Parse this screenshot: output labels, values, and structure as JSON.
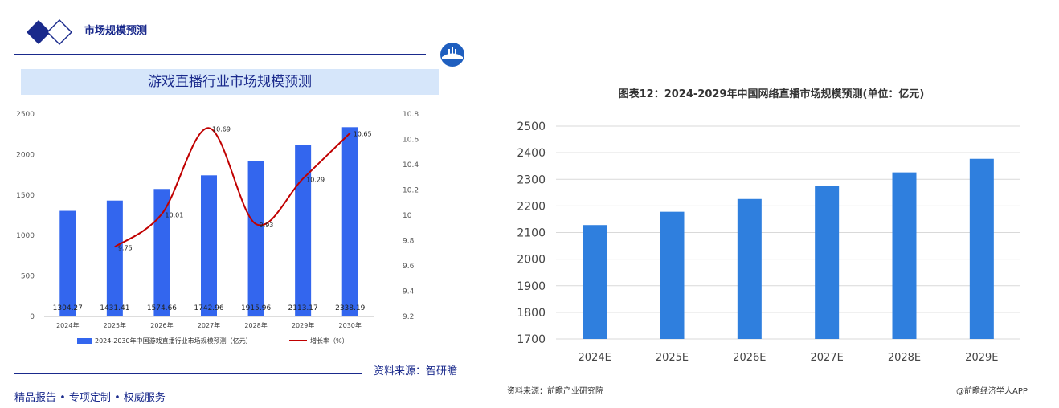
{
  "left_panel": {
    "header_title": "市场规模预测",
    "banner_title": "游戏直播行业市场规模预测",
    "source": "资料来源：智研瞻",
    "footer": "精品报告 • 专项定制 • 权威服务"
  },
  "right_panel": {
    "title": "图表12：2024-2029年中国网络直播市场规模预测(单位：亿元)",
    "source": "资料来源：前瞻产业研究院",
    "credit": "@前瞻经济学人APP"
  },
  "colors": {
    "navy": "#1a2a8c",
    "bar_left": "#3366ee",
    "line_red": "#c00000",
    "bar_right": "#2f7fde",
    "banner_bg": "#d6e6fa"
  },
  "chart_data": [
    {
      "type": "bar",
      "title": "",
      "categories": [
        "2024年",
        "2025年",
        "2026年",
        "2027年",
        "2028年",
        "2029年",
        "2030年"
      ],
      "series": [
        {
          "name": "2024-2030年中国游戏直播行业市场规模预测（亿元）",
          "axis": "left",
          "values": [
            1304.27,
            1431.41,
            1574.66,
            1742.96,
            1915.96,
            2113.17,
            2338.19
          ]
        },
        {
          "name": "增长率（%）",
          "axis": "right",
          "type": "line",
          "values": [
            null,
            9.75,
            10.01,
            10.69,
            9.93,
            10.29,
            10.65
          ]
        }
      ],
      "ylim": [
        0,
        2500
      ],
      "yticks": [
        0,
        500,
        1000,
        1500,
        2000,
        2500
      ],
      "y2lim": [
        9.2,
        10.8
      ],
      "y2ticks": [
        9.2,
        9.4,
        9.6,
        9.8,
        10,
        10.2,
        10.4,
        10.6,
        10.8
      ],
      "legend": "bottom"
    },
    {
      "type": "bar",
      "title": "图表12：2024-2029年中国网络直播市场规模预测(单位：亿元)",
      "categories": [
        "2024E",
        "2025E",
        "2026E",
        "2027E",
        "2028E",
        "2029E"
      ],
      "values": [
        2128,
        2178,
        2226,
        2276,
        2326,
        2377
      ],
      "ylim": [
        1700,
        2500
      ],
      "yticks": [
        1700,
        1800,
        1900,
        2000,
        2100,
        2200,
        2300,
        2400,
        2500
      ],
      "grid": true
    }
  ]
}
